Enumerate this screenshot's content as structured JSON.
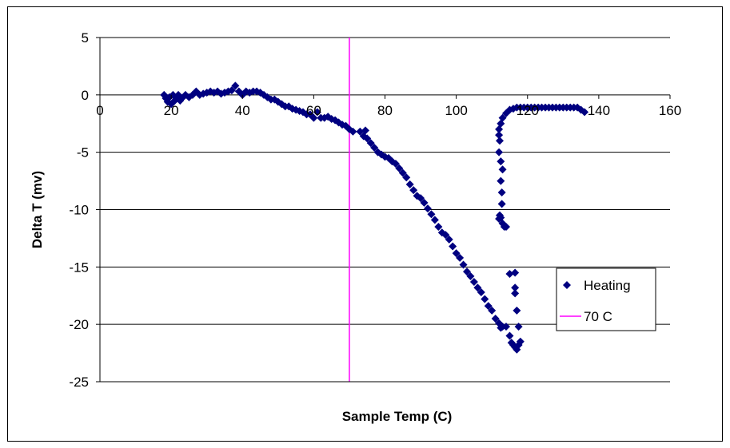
{
  "chart_data": {
    "type": "scatter",
    "title": "",
    "xlabel": "Sample Temp (C)",
    "ylabel": "Delta T (mv)",
    "xlim": [
      0,
      160
    ],
    "ylim": [
      -25,
      5
    ],
    "x_ticks": [
      0,
      20,
      40,
      60,
      80,
      100,
      120,
      140,
      160
    ],
    "y_ticks": [
      5,
      0,
      -5,
      -10,
      -15,
      -20,
      -25
    ],
    "grid": "horizontal",
    "legend_position": "right",
    "series": [
      {
        "name": "Heating",
        "marker": "diamond",
        "color": "#000080",
        "points": [
          [
            18.0,
            0.0
          ],
          [
            18.5,
            -0.3
          ],
          [
            19.0,
            -0.6
          ],
          [
            19.5,
            -0.2
          ],
          [
            20.0,
            -0.8
          ],
          [
            20.5,
            0.0
          ],
          [
            21.0,
            -0.5
          ],
          [
            21.5,
            -0.2
          ],
          [
            22.0,
            0.0
          ],
          [
            22.5,
            -0.5
          ],
          [
            23.0,
            -0.3
          ],
          [
            24.0,
            0.0
          ],
          [
            25.0,
            -0.2
          ],
          [
            26.0,
            0.0
          ],
          [
            27.0,
            0.3
          ],
          [
            28.0,
            0.0
          ],
          [
            29.0,
            0.1
          ],
          [
            30.0,
            0.2
          ],
          [
            31.0,
            0.3
          ],
          [
            32.0,
            0.2
          ],
          [
            33.0,
            0.3
          ],
          [
            34.0,
            0.1
          ],
          [
            35.0,
            0.2
          ],
          [
            36.0,
            0.3
          ],
          [
            37.0,
            0.4
          ],
          [
            38.0,
            0.8
          ],
          [
            39.0,
            0.3
          ],
          [
            40.0,
            0.0
          ],
          [
            41.0,
            0.3
          ],
          [
            42.0,
            0.2
          ],
          [
            43.0,
            0.3
          ],
          [
            44.0,
            0.3
          ],
          [
            45.0,
            0.2
          ],
          [
            46.0,
            0.0
          ],
          [
            47.0,
            -0.2
          ],
          [
            48.0,
            -0.4
          ],
          [
            49.0,
            -0.4
          ],
          [
            50.0,
            -0.6
          ],
          [
            51.0,
            -0.8
          ],
          [
            52.0,
            -1.0
          ],
          [
            53.0,
            -1.0
          ],
          [
            54.0,
            -1.2
          ],
          [
            55.0,
            -1.3
          ],
          [
            56.0,
            -1.4
          ],
          [
            57.0,
            -1.5
          ],
          [
            58.0,
            -1.7
          ],
          [
            59.0,
            -1.7
          ],
          [
            60.0,
            -2.0
          ],
          [
            61.0,
            -1.5
          ],
          [
            62.0,
            -2.0
          ],
          [
            63.0,
            -2.0
          ],
          [
            64.0,
            -1.9
          ],
          [
            65.0,
            -2.1
          ],
          [
            66.0,
            -2.2
          ],
          [
            67.0,
            -2.4
          ],
          [
            68.0,
            -2.6
          ],
          [
            69.0,
            -2.7
          ],
          [
            70.0,
            -3.0
          ],
          [
            71.0,
            -3.2
          ],
          [
            73.0,
            -3.2
          ],
          [
            74.0,
            -3.6
          ],
          [
            74.5,
            -3.1
          ],
          [
            75.0,
            -3.8
          ],
          [
            76.0,
            -4.2
          ],
          [
            77.0,
            -4.6
          ],
          [
            78.0,
            -5.0
          ],
          [
            79.0,
            -5.2
          ],
          [
            80.0,
            -5.4
          ],
          [
            81.0,
            -5.5
          ],
          [
            82.0,
            -5.8
          ],
          [
            83.0,
            -6.0
          ],
          [
            84.0,
            -6.4
          ],
          [
            85.0,
            -6.8
          ],
          [
            86.0,
            -7.2
          ],
          [
            87.0,
            -7.8
          ],
          [
            88.0,
            -8.3
          ],
          [
            89.0,
            -8.8
          ],
          [
            90.0,
            -9.0
          ],
          [
            91.0,
            -9.4
          ],
          [
            92.0,
            -9.9
          ],
          [
            93.0,
            -10.4
          ],
          [
            94.0,
            -10.9
          ],
          [
            95.0,
            -11.5
          ],
          [
            96.0,
            -12.0
          ],
          [
            97.0,
            -12.2
          ],
          [
            98.0,
            -12.6
          ],
          [
            99.0,
            -13.2
          ],
          [
            100.0,
            -13.8
          ],
          [
            101.0,
            -14.2
          ],
          [
            102.0,
            -14.8
          ],
          [
            103.0,
            -15.4
          ],
          [
            104.0,
            -15.8
          ],
          [
            105.0,
            -16.3
          ],
          [
            106.0,
            -16.8
          ],
          [
            107.0,
            -17.2
          ],
          [
            108.0,
            -17.8
          ],
          [
            109.0,
            -18.4
          ],
          [
            110.0,
            -18.8
          ],
          [
            111.0,
            -19.5
          ],
          [
            112.0,
            -19.9
          ],
          [
            112.5,
            -20.3
          ],
          [
            113.0,
            -20.2
          ],
          [
            114.0,
            -20.2
          ],
          [
            115.0,
            -21.0
          ],
          [
            115.5,
            -21.6
          ],
          [
            116.0,
            -21.8
          ],
          [
            116.5,
            -22.0
          ],
          [
            117.0,
            -22.2
          ],
          [
            117.5,
            -21.8
          ],
          [
            118.0,
            -21.5
          ],
          [
            116.5,
            -15.5
          ],
          [
            116.5,
            -16.8
          ],
          [
            116.5,
            -17.3
          ],
          [
            117.0,
            -18.8
          ],
          [
            117.5,
            -20.2
          ],
          [
            115.0,
            -15.6
          ],
          [
            114.0,
            -11.5
          ],
          [
            113.5,
            -11.5
          ],
          [
            113.0,
            -11.2
          ],
          [
            112.5,
            -10.7
          ],
          [
            112.2,
            -10.5
          ],
          [
            112.0,
            -10.8
          ],
          [
            112.8,
            -9.5
          ],
          [
            112.8,
            -8.5
          ],
          [
            112.5,
            -7.5
          ],
          [
            113.0,
            -6.5
          ],
          [
            112.5,
            -5.8
          ],
          [
            112.0,
            -5.0
          ],
          [
            112.2,
            -4.0
          ],
          [
            112.0,
            -3.5
          ],
          [
            112.0,
            -3.0
          ],
          [
            112.5,
            -2.5
          ],
          [
            113.0,
            -2.0
          ],
          [
            114.0,
            -1.6
          ],
          [
            115.0,
            -1.3
          ],
          [
            116.0,
            -1.2
          ],
          [
            117.0,
            -1.1
          ],
          [
            118.0,
            -1.1
          ],
          [
            119.0,
            -1.1
          ],
          [
            120.0,
            -1.1
          ],
          [
            121.0,
            -1.1
          ],
          [
            122.0,
            -1.1
          ],
          [
            123.0,
            -1.1
          ],
          [
            124.0,
            -1.1
          ],
          [
            125.0,
            -1.1
          ],
          [
            126.0,
            -1.1
          ],
          [
            127.0,
            -1.1
          ],
          [
            128.0,
            -1.1
          ],
          [
            129.0,
            -1.1
          ],
          [
            130.0,
            -1.1
          ],
          [
            131.0,
            -1.1
          ],
          [
            132.0,
            -1.1
          ],
          [
            133.0,
            -1.1
          ],
          [
            134.0,
            -1.1
          ],
          [
            135.0,
            -1.3
          ],
          [
            136.0,
            -1.5
          ]
        ]
      },
      {
        "name": "70 C",
        "type": "vertical-line",
        "color": "#ff00ff",
        "x": 70
      }
    ]
  }
}
